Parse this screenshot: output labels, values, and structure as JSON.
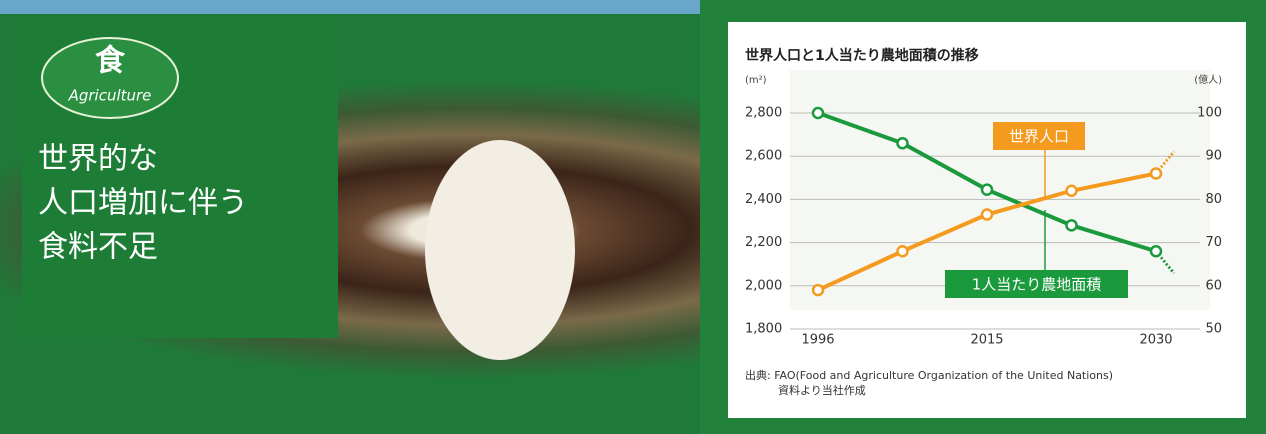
{
  "banner": {
    "badge_kanji": "食",
    "badge_text": "Agriculture",
    "headline": [
      "世界的な",
      "人口増加に伴う",
      "食料不足"
    ]
  },
  "chart_data": {
    "type": "line",
    "title": "世界人口と1人当たり農地面積の推移",
    "y_unit": "(m²)",
    "y2_unit": "(億人)",
    "categories": [
      "1996",
      null,
      "2015",
      null,
      "2030"
    ],
    "series": [
      {
        "name": "1人当たり農地面積",
        "color": "#1a9a3c",
        "values": [
          2800,
          2660,
          2445,
          2280,
          2160
        ]
      },
      {
        "name": "世界人口",
        "color": "#f39a1f",
        "axis": "y2",
        "values": [
          59,
          68,
          76.5,
          82,
          86
        ]
      }
    ],
    "ylim": [
      1800,
      2800
    ],
    "yticks": [
      {
        "value": 1800,
        "label": "1,800"
      },
      {
        "value": 2000,
        "label": "2,000"
      },
      {
        "value": 2200,
        "label": "2,200"
      },
      {
        "value": 2400,
        "label": "2,400"
      },
      {
        "value": 2600,
        "label": "2,600"
      },
      {
        "value": 2800,
        "label": "2,800"
      }
    ],
    "y2lim": [
      50,
      100
    ],
    "y2ticks": [
      50,
      60,
      70,
      80,
      90,
      100
    ],
    "grid": true,
    "source": [
      "出典: FAO(Food and Agriculture Organization of the United Nations)",
      "資料より当社作成"
    ]
  }
}
